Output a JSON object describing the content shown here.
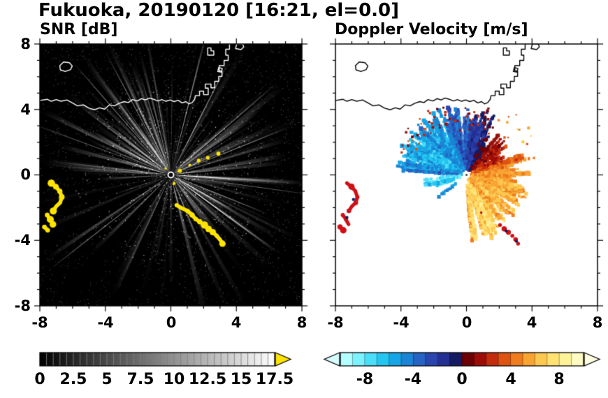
{
  "title": "Fukuoka, 20190120 [16:21, el=0.0]",
  "site": "Fukuoka",
  "date": "20190120",
  "time": "16:21",
  "elevation": "0.0",
  "panels": {
    "snr": {
      "subtitle": "SNR [dB]",
      "background": "#000000",
      "xtick_labels": [
        "-8",
        "-4",
        "0",
        "4",
        "8"
      ],
      "ytick_labels": [
        "8",
        "4",
        "0",
        "-4",
        "-8"
      ],
      "colorbar": {
        "min": 0,
        "max": 17.5,
        "labels": [
          "0",
          "2.5",
          "5",
          "7.5",
          "10",
          "12.5",
          "15",
          "17.5"
        ],
        "scale_start": "#000000",
        "scale_end": "#ffffff",
        "over_arrow_color": "#ffe400"
      }
    },
    "velocity": {
      "subtitle": "Doppler Velocity [m/s]",
      "background": "#ffffff",
      "xtick_labels": [
        "-8",
        "-4",
        "0",
        "4",
        "8"
      ],
      "colorbar": {
        "min": -10,
        "max": 10,
        "labels": [
          "-8",
          "-4",
          "0",
          "4",
          "8"
        ],
        "segment_colors": [
          "#b4feff",
          "#7df2ff",
          "#4adefa",
          "#24c6f0",
          "#17a5e5",
          "#1b84d4",
          "#2663c2",
          "#2a45ae",
          "#243093",
          "#141b63",
          "#6d0005",
          "#9d0d08",
          "#c32c0c",
          "#de5311",
          "#ef7c1e",
          "#f8a433",
          "#fdc850",
          "#ffe272",
          "#fff39a",
          "#fffbc2"
        ],
        "under_arrow_color": "#d6feff",
        "over_arrow_color": "#fffce0"
      }
    }
  },
  "chart_data": {
    "type": "radar_ppi_pair",
    "x_range": [
      -8,
      8
    ],
    "y_range": [
      -8,
      8
    ],
    "xticks": [
      -8,
      -4,
      0,
      4,
      8
    ],
    "yticks": [
      -8,
      -4,
      0,
      4,
      8
    ],
    "radar_center": [
      0,
      0
    ],
    "snr": {
      "colorbar_range_db": [
        0,
        17.5
      ],
      "colorbar_ticks_db": [
        0,
        2.5,
        5,
        7.5,
        10,
        12.5,
        15,
        17.5
      ],
      "description": "PPI of signal-to-noise ratio on black background: gray/white radial beams emanate from the radar at the origin in all directions, densest/brightest toward WNW and E; several black blocked sectors toward SSW; saturated (>17.5 dB, yellow) clutter arcs near (-7,-0.5)..(-7.2,-3.4) and a curved echo chain from (0.35,-1.85) to (3.15,-4.2); small yellow specks NE of the radar; white coastline across the top of the domain.",
      "bright_ray_angles_deg": [
        107,
        118,
        131,
        143,
        152,
        163,
        76,
        63,
        41,
        22,
        -8,
        -22,
        -36,
        205,
        218
      ],
      "blocked_sectors_deg": [
        [
          207,
          6
        ],
        [
          229,
          7
        ],
        [
          248,
          5
        ],
        [
          196,
          4
        ],
        [
          302,
          3
        ]
      ],
      "saturated_color": "#ffe400",
      "saturated_specks": [
        [
          0.55,
          0.25
        ],
        [
          1.15,
          0.6
        ],
        [
          1.7,
          0.88
        ],
        [
          2.25,
          1.05
        ],
        [
          0.2,
          -0.52
        ],
        [
          -0.32,
          0.4
        ],
        [
          2.9,
          1.3
        ]
      ]
    },
    "velocity": {
      "colorbar_range_ms": [
        -10,
        10
      ],
      "colorbar_ticks_ms": [
        -8,
        -4,
        0,
        4,
        8
      ],
      "description": "Doppler velocity fan around radar at origin: negative velocities (cyan/blue, toward radar) over the NW quadrant and light-cyan streaks to the SW; positive velocities (orange/yellow, away from radar) over the E and SE; near-zero dark navy/dark red band toward N with scattered red aliasing specks along the northern fringe; red ground-clutter arcs near (-7,-0.5)..(-7.2,-3.4) and red/dark marks along the SE echo chain; black coastline across the top.",
      "flow_model": {
        "amplitude_ms": 5.5,
        "inflow_direction_deg_math": 148
      },
      "sectors": [
        {
          "a0": -88,
          "a1": -55,
          "rmax": 4.2,
          "rays": 24,
          "vbias": 2.5
        },
        {
          "a0": -55,
          "a1": 25,
          "rmax": 4.0,
          "rays": 72,
          "vbias": 0.5
        },
        {
          "a0": 25,
          "a1": 60,
          "rmax": 3.2,
          "rays": 26,
          "vbias": 0
        },
        {
          "a0": 60,
          "a1": 100,
          "rmax": 4.3,
          "rays": 38,
          "vbias": 0
        },
        {
          "a0": 100,
          "a1": 176,
          "rmax": 4.4,
          "rays": 88,
          "vbias": 0
        },
        {
          "a0": 183,
          "a1": 228,
          "rmax": 2.7,
          "rays": 20,
          "vbias": -3.5
        }
      ],
      "gap_sectors_deg": [
        [
          204,
          214
        ],
        [
          226,
          236
        ],
        [
          244,
          252
        ]
      ],
      "clutter_color": "#cf1016",
      "chain_marks": [
        [
          2.05,
          -3.06
        ],
        [
          2.3,
          -3.3
        ],
        [
          2.56,
          -3.5
        ],
        [
          2.8,
          -3.72
        ],
        [
          3.0,
          -3.95
        ],
        [
          3.15,
          -4.2
        ],
        [
          0.9,
          -2.3
        ]
      ],
      "dark_specks": [
        [
          2.42,
          -3.42
        ],
        [
          3.05,
          -4.05
        ],
        [
          -6.9,
          -1.5
        ],
        [
          -7.3,
          -2.6
        ]
      ]
    },
    "clutter": {
      "left_arcs": [
        [
          [
            -7.3,
            -0.5
          ],
          [
            -7.02,
            -0.72
          ],
          [
            -6.78,
            -1.0
          ],
          [
            -6.66,
            -1.35
          ],
          [
            -6.76,
            -1.7
          ],
          [
            -7.0,
            -1.92
          ],
          [
            -7.18,
            -2.2
          ]
        ],
        [
          [
            -7.55,
            -2.45
          ],
          [
            -7.36,
            -2.72
          ],
          [
            -7.2,
            -3.02
          ]
        ],
        [
          [
            -7.72,
            -3.18
          ],
          [
            -7.52,
            -3.38
          ]
        ]
      ],
      "southeast_chain": [
        [
          0.35,
          -1.85
        ],
        [
          0.7,
          -2.05
        ],
        [
          1.02,
          -2.2
        ],
        [
          1.3,
          -2.45
        ],
        [
          1.52,
          -2.7
        ],
        [
          1.76,
          -2.86
        ],
        [
          2.05,
          -3.06
        ],
        [
          2.3,
          -3.3
        ],
        [
          2.56,
          -3.5
        ],
        [
          2.8,
          -3.72
        ],
        [
          3.0,
          -3.95
        ],
        [
          3.15,
          -4.2
        ]
      ]
    },
    "coastline": {
      "mainline": [
        [
          -8,
          4.55
        ],
        [
          -7.55,
          4.62
        ],
        [
          -7.3,
          4.5
        ],
        [
          -7.0,
          4.6
        ],
        [
          -6.7,
          4.5
        ],
        [
          -6.35,
          4.58
        ],
        [
          -6.05,
          4.42
        ],
        [
          -5.7,
          4.22
        ],
        [
          -5.35,
          4.28
        ],
        [
          -5.0,
          4.08
        ],
        [
          -4.65,
          3.98
        ],
        [
          -4.35,
          4.1
        ],
        [
          -4.05,
          4.02
        ],
        [
          -3.75,
          4.28
        ],
        [
          -3.45,
          4.22
        ],
        [
          -3.15,
          4.38
        ],
        [
          -2.85,
          4.48
        ],
        [
          -2.6,
          4.42
        ],
        [
          -2.35,
          4.6
        ],
        [
          -2.05,
          4.52
        ],
        [
          -1.8,
          4.66
        ],
        [
          -1.55,
          4.58
        ],
        [
          -1.3,
          4.7
        ],
        [
          -1.05,
          4.62
        ],
        [
          -0.8,
          4.52
        ],
        [
          -0.55,
          4.6
        ],
        [
          -0.3,
          4.5
        ],
        [
          -0.05,
          4.58
        ],
        [
          0.2,
          4.48
        ],
        [
          0.45,
          4.56
        ],
        [
          0.68,
          4.4
        ],
        [
          0.92,
          4.48
        ],
        [
          1.1,
          4.34
        ],
        [
          1.3,
          4.42
        ],
        [
          1.45,
          4.62
        ],
        [
          1.5,
          4.85
        ],
        [
          1.75,
          4.85
        ],
        [
          1.75,
          5.12
        ],
        [
          2.0,
          5.12
        ],
        [
          2.0,
          4.9
        ],
        [
          2.28,
          4.9
        ],
        [
          2.28,
          5.3
        ],
        [
          2.1,
          5.3
        ],
        [
          2.1,
          5.55
        ],
        [
          2.45,
          5.55
        ],
        [
          2.45,
          5.32
        ],
        [
          2.68,
          5.32
        ],
        [
          2.68,
          5.72
        ],
        [
          2.92,
          5.72
        ],
        [
          2.92,
          6.02
        ],
        [
          3.12,
          6.02
        ],
        [
          3.12,
          6.35
        ],
        [
          2.95,
          6.35
        ],
        [
          2.95,
          6.68
        ],
        [
          3.25,
          6.68
        ],
        [
          3.25,
          7.0
        ],
        [
          3.5,
          7.0
        ],
        [
          3.5,
          7.32
        ],
        [
          3.35,
          7.32
        ],
        [
          3.35,
          7.68
        ],
        [
          3.58,
          7.68
        ],
        [
          3.58,
          8.0
        ]
      ],
      "island": [
        [
          -6.75,
          6.42
        ],
        [
          -6.45,
          6.32
        ],
        [
          -6.12,
          6.44
        ],
        [
          -6.02,
          6.66
        ],
        [
          -6.2,
          6.86
        ],
        [
          -6.55,
          6.9
        ],
        [
          -6.78,
          6.68
        ]
      ],
      "structures": [
        [
          [
            2.25,
            7.32
          ],
          [
            2.62,
            7.32
          ],
          [
            2.62,
            7.58
          ],
          [
            2.45,
            7.58
          ],
          [
            2.45,
            7.76
          ],
          [
            2.25,
            7.76
          ]
        ],
        [
          [
            2.86,
            6.32
          ],
          [
            3.08,
            6.28
          ],
          [
            3.14,
            6.5
          ],
          [
            2.92,
            6.56
          ]
        ],
        [
          [
            3.95,
            7.72
          ],
          [
            4.28,
            7.66
          ],
          [
            4.45,
            7.82
          ],
          [
            4.38,
            8.0
          ],
          [
            4.02,
            8.0
          ]
        ]
      ]
    }
  }
}
